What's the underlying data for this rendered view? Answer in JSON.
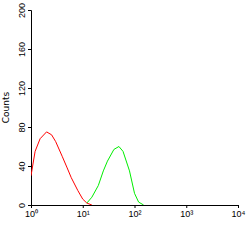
{
  "chart_data": {
    "type": "line",
    "log": "x",
    "y_label": "Counts",
    "x": [
      1,
      1.2,
      1.5,
      2,
      2.5,
      3,
      4,
      5,
      6,
      8,
      10,
      12,
      15,
      20,
      25,
      30,
      40,
      50,
      60,
      80,
      100,
      120,
      150
    ],
    "series": [
      {
        "color": "#ff0000",
        "values": [
          30,
          55,
          68,
          75,
          72,
          65,
          50,
          38,
          28,
          15,
          6,
          2,
          0,
          null,
          null,
          null,
          null,
          null,
          null,
          null,
          null,
          null,
          null
        ]
      },
      {
        "color": "#00ee00",
        "values": [
          null,
          null,
          null,
          null,
          null,
          null,
          null,
          null,
          null,
          null,
          null,
          2,
          8,
          20,
          35,
          45,
          57,
          60,
          55,
          35,
          12,
          3,
          0
        ]
      }
    ],
    "xlim": [
      1,
      10000
    ],
    "xticks": [
      {
        "value": 1,
        "label": "10⁰"
      },
      {
        "value": 10,
        "label": "10¹"
      },
      {
        "value": 100,
        "label": "10²"
      },
      {
        "value": 1000,
        "label": "10³"
      },
      {
        "value": 10000,
        "label": "10⁴"
      }
    ],
    "ylim": [
      0,
      200
    ],
    "yticks": [
      0,
      40,
      80,
      120,
      160,
      200
    ],
    "grid": false
  }
}
